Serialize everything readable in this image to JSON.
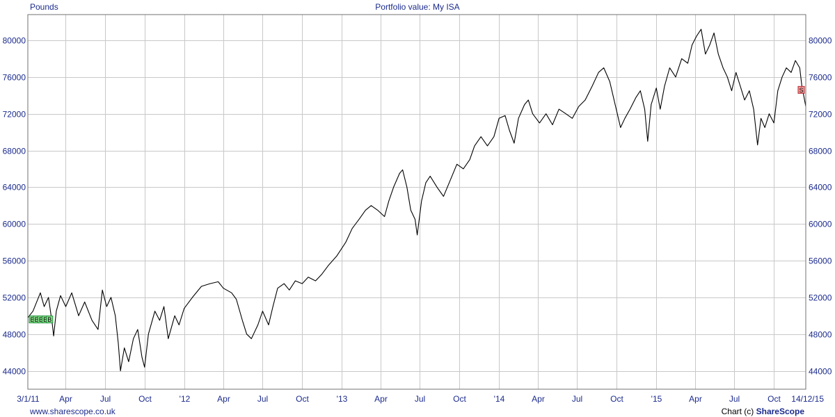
{
  "header": {
    "units_label": "Pounds",
    "title": "Portfolio value: My ISA"
  },
  "footer": {
    "website": "www.sharescope.co.uk",
    "credit_prefix": "Chart (c) ",
    "credit_brand": "ShareScope"
  },
  "colors": {
    "text": "#1a2a8c",
    "grid": "#c8c8c8",
    "line": "#000000",
    "buy_marker": "#27c24c",
    "sell_marker": "#e04b4b"
  },
  "chart_data": {
    "type": "line",
    "title": "Portfolio value: My ISA",
    "ylabel": "Pounds",
    "xlabel": "",
    "grid": true,
    "xlim": [
      "2011-01-03",
      "2015-12-14"
    ],
    "ylim": [
      42000,
      82800
    ],
    "y_ticks": [
      44000,
      48000,
      52000,
      56000,
      60000,
      64000,
      68000,
      72000,
      76000,
      80000
    ],
    "x_ticks": [
      {
        "label": "3/1/11",
        "date": "2011-01-03"
      },
      {
        "label": "Apr",
        "date": "2011-04-01"
      },
      {
        "label": "Jul",
        "date": "2011-07-01"
      },
      {
        "label": "Oct",
        "date": "2011-10-01"
      },
      {
        "label": "'12",
        "date": "2012-01-01"
      },
      {
        "label": "Apr",
        "date": "2012-04-01"
      },
      {
        "label": "Jul",
        "date": "2012-07-01"
      },
      {
        "label": "Oct",
        "date": "2012-10-01"
      },
      {
        "label": "'13",
        "date": "2013-01-01"
      },
      {
        "label": "Apr",
        "date": "2013-04-01"
      },
      {
        "label": "Jul",
        "date": "2013-07-01"
      },
      {
        "label": "Oct",
        "date": "2013-10-01"
      },
      {
        "label": "'14",
        "date": "2014-01-01"
      },
      {
        "label": "Apr",
        "date": "2014-04-01"
      },
      {
        "label": "Jul",
        "date": "2014-07-01"
      },
      {
        "label": "Oct",
        "date": "2014-10-01"
      },
      {
        "label": "'15",
        "date": "2015-01-01"
      },
      {
        "label": "Apr",
        "date": "2015-04-01"
      },
      {
        "label": "Jul",
        "date": "2015-07-01"
      },
      {
        "label": "Oct",
        "date": "2015-10-01"
      },
      {
        "label": "14/12/15",
        "date": "2015-12-14"
      }
    ],
    "markers": [
      {
        "label": "B",
        "date": "2011-01-03",
        "value": 49600
      },
      {
        "label": "B",
        "date": "2011-01-13",
        "value": 49600
      },
      {
        "label": "B",
        "date": "2011-01-23",
        "value": 49600
      },
      {
        "label": "B",
        "date": "2011-02-02",
        "value": 49600
      },
      {
        "label": "B",
        "date": "2011-02-12",
        "value": 49600
      },
      {
        "label": "S",
        "date": "2015-12-14",
        "value": 74600
      }
    ],
    "series": [
      {
        "values": [
          [
            "2011-01-03",
            49800
          ],
          [
            "2011-01-15",
            50500
          ],
          [
            "2011-02-01",
            52500
          ],
          [
            "2011-02-10",
            51000
          ],
          [
            "2011-02-20",
            52000
          ],
          [
            "2011-03-01",
            49000
          ],
          [
            "2011-03-04",
            47800
          ],
          [
            "2011-03-10",
            50500
          ],
          [
            "2011-03-20",
            52200
          ],
          [
            "2011-04-01",
            51000
          ],
          [
            "2011-04-15",
            52500
          ],
          [
            "2011-05-01",
            50000
          ],
          [
            "2011-05-15",
            51500
          ],
          [
            "2011-06-01",
            49500
          ],
          [
            "2011-06-15",
            48500
          ],
          [
            "2011-06-25",
            52800
          ],
          [
            "2011-07-05",
            51000
          ],
          [
            "2011-07-15",
            52000
          ],
          [
            "2011-07-25",
            50000
          ],
          [
            "2011-08-01",
            47000
          ],
          [
            "2011-08-06",
            44000
          ],
          [
            "2011-08-15",
            46500
          ],
          [
            "2011-08-25",
            45000
          ],
          [
            "2011-09-05",
            47500
          ],
          [
            "2011-09-15",
            48500
          ],
          [
            "2011-09-25",
            45500
          ],
          [
            "2011-10-01",
            44400
          ],
          [
            "2011-10-10",
            48000
          ],
          [
            "2011-10-25",
            50500
          ],
          [
            "2011-11-05",
            49500
          ],
          [
            "2011-11-15",
            51000
          ],
          [
            "2011-11-25",
            47500
          ],
          [
            "2011-12-10",
            50000
          ],
          [
            "2011-12-20",
            49000
          ],
          [
            "2012-01-01",
            50800
          ],
          [
            "2012-01-20",
            52000
          ],
          [
            "2012-02-10",
            53200
          ],
          [
            "2012-03-01",
            53500
          ],
          [
            "2012-03-20",
            53700
          ],
          [
            "2012-04-01",
            53000
          ],
          [
            "2012-04-20",
            52500
          ],
          [
            "2012-05-01",
            51800
          ],
          [
            "2012-05-15",
            49500
          ],
          [
            "2012-05-25",
            48000
          ],
          [
            "2012-06-05",
            47500
          ],
          [
            "2012-06-20",
            49000
          ],
          [
            "2012-07-01",
            50500
          ],
          [
            "2012-07-15",
            49000
          ],
          [
            "2012-07-25",
            51000
          ],
          [
            "2012-08-05",
            53000
          ],
          [
            "2012-08-20",
            53500
          ],
          [
            "2012-09-01",
            52800
          ],
          [
            "2012-09-15",
            53800
          ],
          [
            "2012-10-01",
            53500
          ],
          [
            "2012-10-15",
            54200
          ],
          [
            "2012-11-01",
            53800
          ],
          [
            "2012-11-15",
            54500
          ],
          [
            "2012-12-01",
            55500
          ],
          [
            "2012-12-20",
            56500
          ],
          [
            "2013-01-10",
            58000
          ],
          [
            "2013-01-25",
            59500
          ],
          [
            "2013-02-10",
            60500
          ],
          [
            "2013-02-25",
            61500
          ],
          [
            "2013-03-10",
            62000
          ],
          [
            "2013-03-25",
            61500
          ],
          [
            "2013-04-10",
            60800
          ],
          [
            "2013-04-20",
            62500
          ],
          [
            "2013-05-01",
            64000
          ],
          [
            "2013-05-15",
            65500
          ],
          [
            "2013-05-22",
            65900
          ],
          [
            "2013-06-01",
            64000
          ],
          [
            "2013-06-10",
            61500
          ],
          [
            "2013-06-20",
            60500
          ],
          [
            "2013-06-25",
            58800
          ],
          [
            "2013-07-05",
            62500
          ],
          [
            "2013-07-15",
            64500
          ],
          [
            "2013-07-25",
            65200
          ],
          [
            "2013-08-10",
            64000
          ],
          [
            "2013-08-25",
            63000
          ],
          [
            "2013-09-10",
            64800
          ],
          [
            "2013-09-25",
            66500
          ],
          [
            "2013-10-10",
            66000
          ],
          [
            "2013-10-25",
            67000
          ],
          [
            "2013-11-05",
            68500
          ],
          [
            "2013-11-20",
            69500
          ],
          [
            "2013-12-05",
            68500
          ],
          [
            "2013-12-20",
            69500
          ],
          [
            "2014-01-01",
            71500
          ],
          [
            "2014-01-15",
            71800
          ],
          [
            "2014-01-25",
            70200
          ],
          [
            "2014-02-05",
            68800
          ],
          [
            "2014-02-15",
            71500
          ],
          [
            "2014-03-01",
            73000
          ],
          [
            "2014-03-10",
            73500
          ],
          [
            "2014-03-20",
            72000
          ],
          [
            "2014-04-05",
            71000
          ],
          [
            "2014-04-20",
            72000
          ],
          [
            "2014-05-05",
            70800
          ],
          [
            "2014-05-20",
            72500
          ],
          [
            "2014-06-05",
            72000
          ],
          [
            "2014-06-20",
            71500
          ],
          [
            "2014-07-05",
            72800
          ],
          [
            "2014-07-20",
            73500
          ],
          [
            "2014-08-05",
            75000
          ],
          [
            "2014-08-20",
            76500
          ],
          [
            "2014-09-01",
            77000
          ],
          [
            "2014-09-15",
            75500
          ],
          [
            "2014-09-25",
            73500
          ],
          [
            "2014-10-10",
            70500
          ],
          [
            "2014-10-20",
            71500
          ],
          [
            "2014-11-01",
            72500
          ],
          [
            "2014-11-15",
            73800
          ],
          [
            "2014-11-25",
            74500
          ],
          [
            "2014-12-05",
            72500
          ],
          [
            "2014-12-12",
            69000
          ],
          [
            "2014-12-20",
            73000
          ],
          [
            "2015-01-01",
            74800
          ],
          [
            "2015-01-10",
            72500
          ],
          [
            "2015-01-20",
            75000
          ],
          [
            "2015-02-01",
            77000
          ],
          [
            "2015-02-15",
            76000
          ],
          [
            "2015-03-01",
            78000
          ],
          [
            "2015-03-15",
            77500
          ],
          [
            "2015-03-25",
            79500
          ],
          [
            "2015-04-05",
            80500
          ],
          [
            "2015-04-15",
            81200
          ],
          [
            "2015-04-25",
            78500
          ],
          [
            "2015-05-05",
            79500
          ],
          [
            "2015-05-15",
            80800
          ],
          [
            "2015-05-25",
            78500
          ],
          [
            "2015-06-05",
            77000
          ],
          [
            "2015-06-15",
            76000
          ],
          [
            "2015-06-25",
            74500
          ],
          [
            "2015-07-05",
            76500
          ],
          [
            "2015-07-15",
            75000
          ],
          [
            "2015-07-25",
            73500
          ],
          [
            "2015-08-05",
            74500
          ],
          [
            "2015-08-15",
            72500
          ],
          [
            "2015-08-24",
            68600
          ],
          [
            "2015-09-01",
            71500
          ],
          [
            "2015-09-10",
            70500
          ],
          [
            "2015-09-20",
            72000
          ],
          [
            "2015-10-01",
            71000
          ],
          [
            "2015-10-10",
            74500
          ],
          [
            "2015-10-20",
            76000
          ],
          [
            "2015-10-30",
            77000
          ],
          [
            "2015-11-10",
            76500
          ],
          [
            "2015-11-20",
            77800
          ],
          [
            "2015-11-30",
            77000
          ],
          [
            "2015-12-05",
            75000
          ],
          [
            "2015-12-10",
            73800
          ],
          [
            "2015-12-14",
            72800
          ]
        ]
      }
    ]
  }
}
